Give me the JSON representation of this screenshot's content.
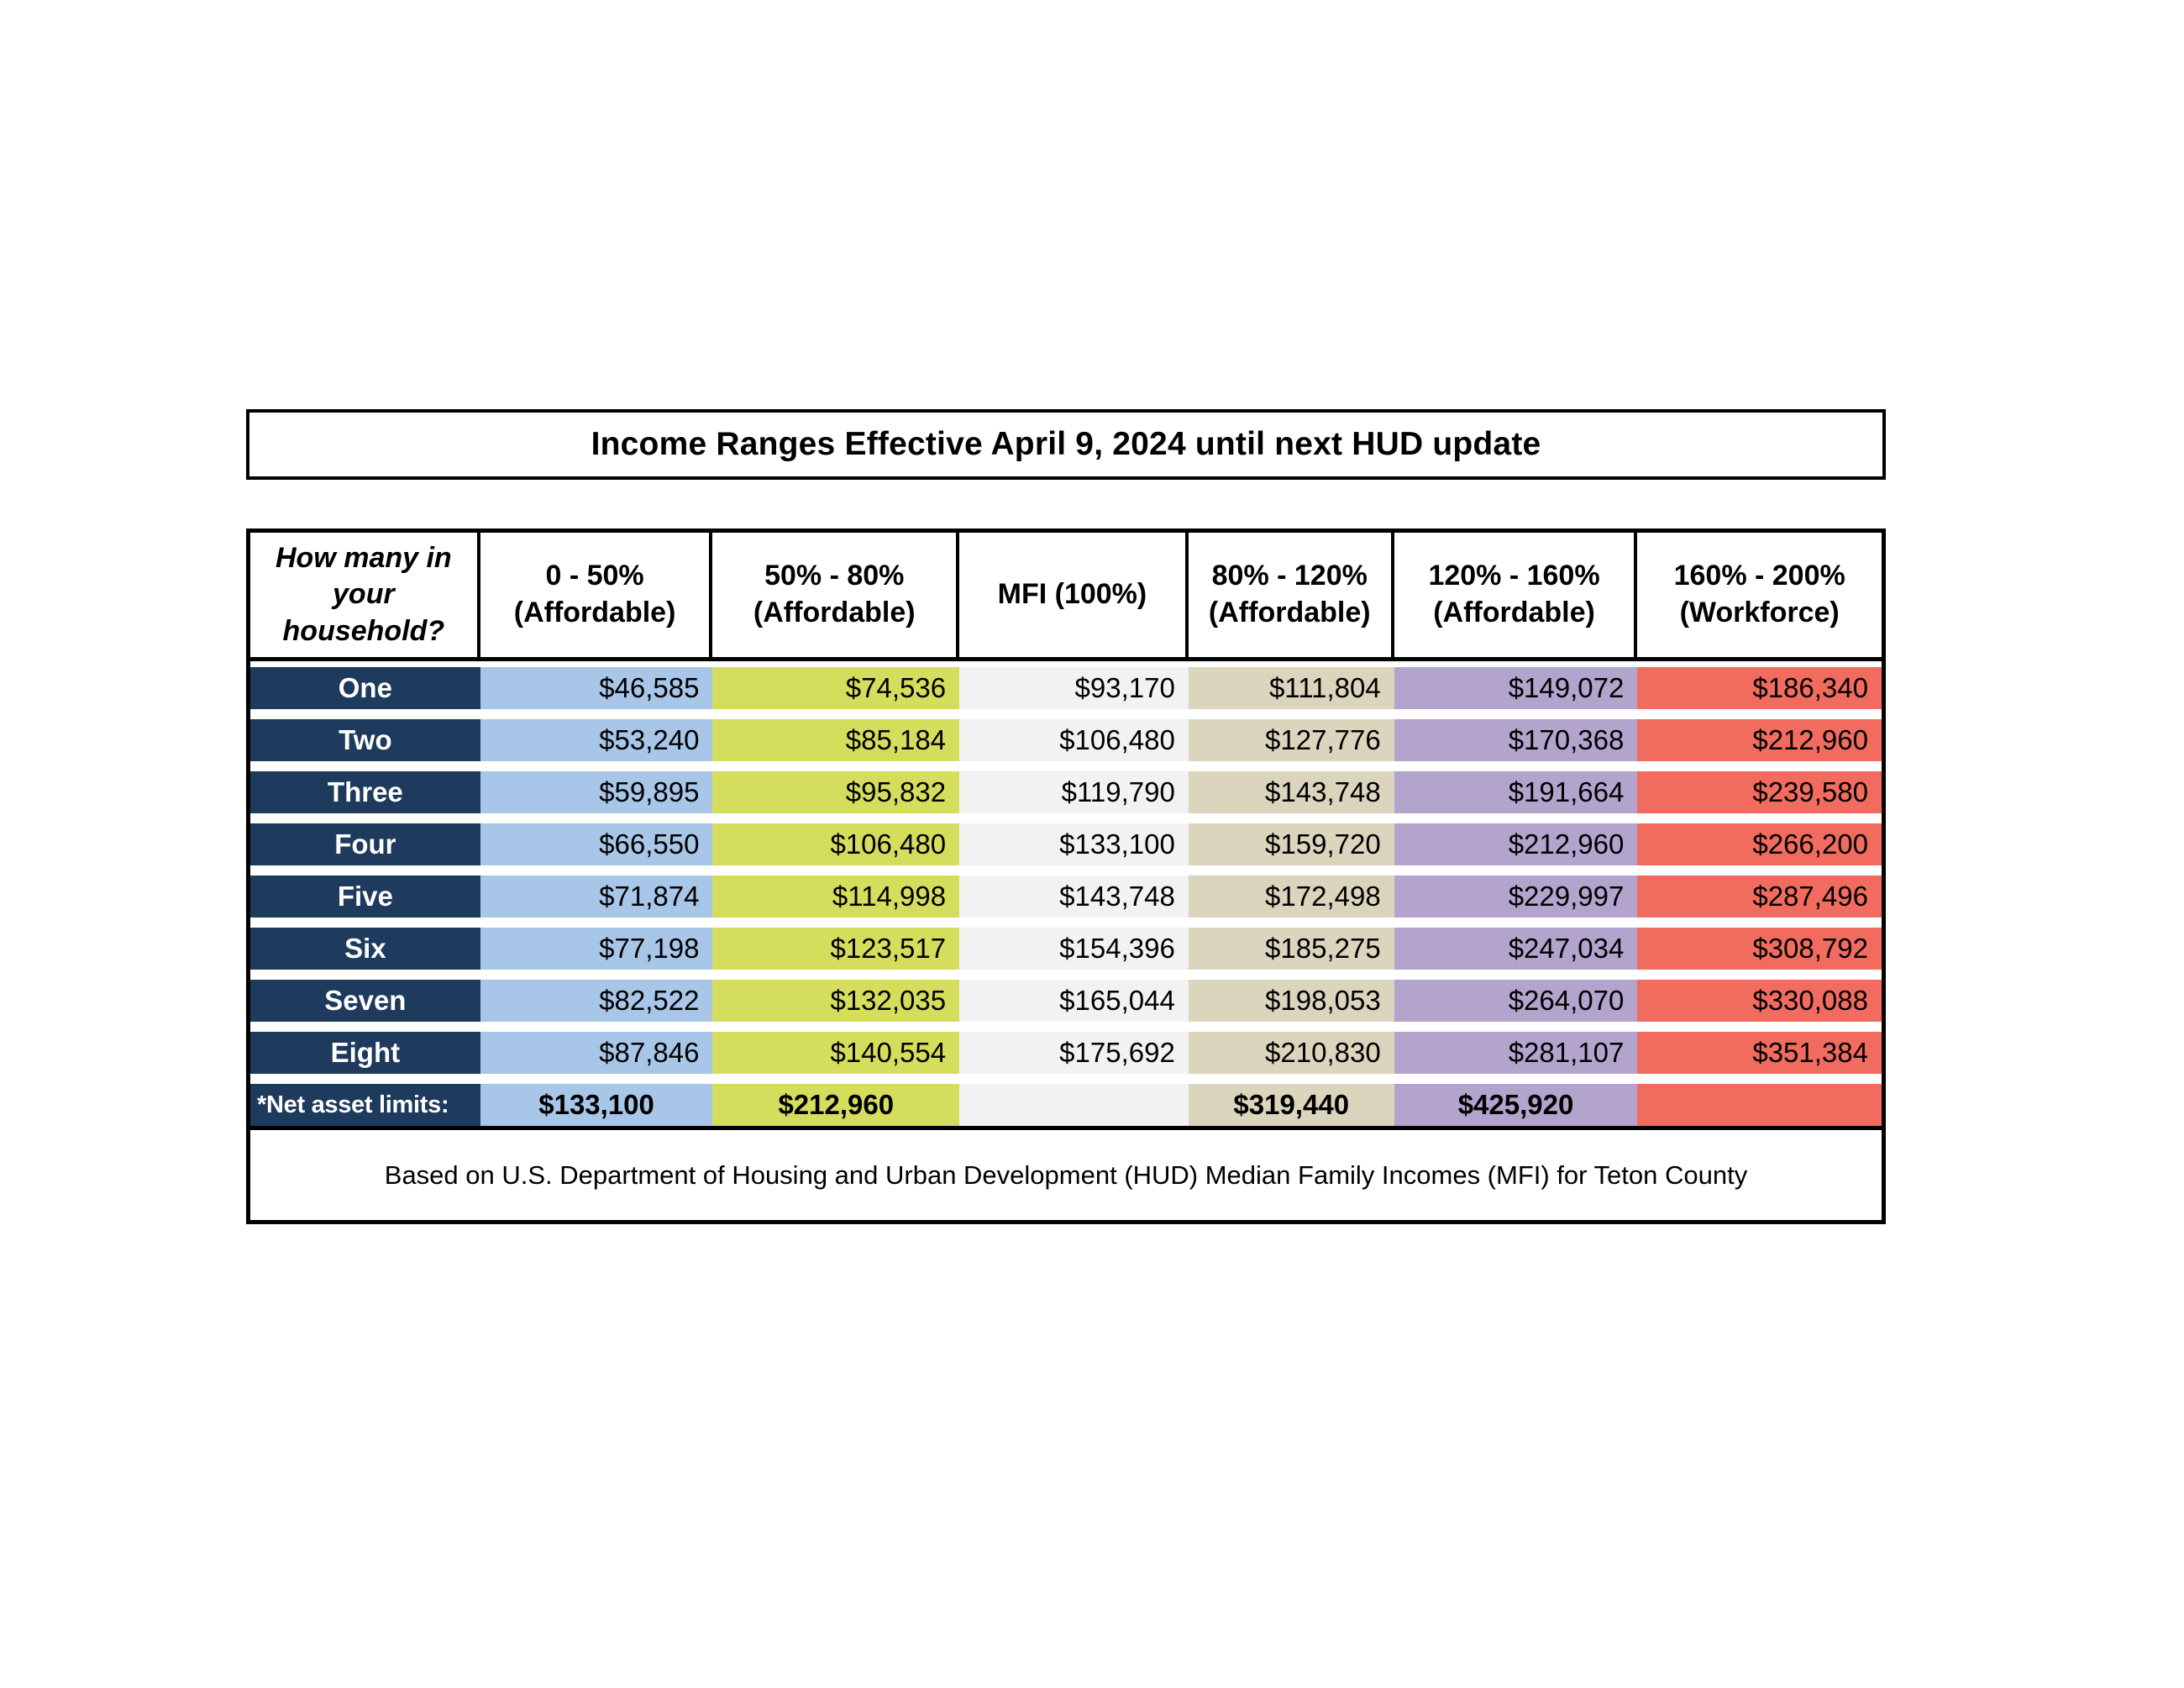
{
  "title": "Income Ranges Effective April 9, 2024 until next HUD update",
  "table": {
    "corner_header": "How many in your household?",
    "columns": [
      {
        "label": "0 - 50%",
        "sublabel": "(Affordable)"
      },
      {
        "label": "50% - 80%",
        "sublabel": "(Affordable)"
      },
      {
        "label": "MFI (100%)",
        "sublabel": ""
      },
      {
        "label": "80% - 120%",
        "sublabel": "(Affordable)"
      },
      {
        "label": "120% - 160%",
        "sublabel": "(Affordable)"
      },
      {
        "label": "160% - 200%",
        "sublabel": "(Workforce)"
      }
    ],
    "rows": [
      {
        "label": "One",
        "values": [
          "$46,585",
          "$74,536",
          "$93,170",
          "$111,804",
          "$149,072",
          "$186,340"
        ]
      },
      {
        "label": "Two",
        "values": [
          "$53,240",
          "$85,184",
          "$106,480",
          "$127,776",
          "$170,368",
          "$212,960"
        ]
      },
      {
        "label": "Three",
        "values": [
          "$59,895",
          "$95,832",
          "$119,790",
          "$143,748",
          "$191,664",
          "$239,580"
        ]
      },
      {
        "label": "Four",
        "values": [
          "$66,550",
          "$106,480",
          "$133,100",
          "$159,720",
          "$212,960",
          "$266,200"
        ]
      },
      {
        "label": "Five",
        "values": [
          "$71,874",
          "$114,998",
          "$143,748",
          "$172,498",
          "$229,997",
          "$287,496"
        ]
      },
      {
        "label": "Six",
        "values": [
          "$77,198",
          "$123,517",
          "$154,396",
          "$185,275",
          "$247,034",
          "$308,792"
        ]
      },
      {
        "label": "Seven",
        "values": [
          "$82,522",
          "$132,035",
          "$165,044",
          "$198,053",
          "$264,070",
          "$330,088"
        ]
      },
      {
        "label": "Eight",
        "values": [
          "$87,846",
          "$140,554",
          "$175,692",
          "$210,830",
          "$281,107",
          "$351,384"
        ]
      }
    ],
    "net_asset_limits": {
      "label": "*Net asset limits:",
      "values": [
        "$133,100",
        "$212,960",
        "",
        "$319,440",
        "$425,920",
        ""
      ]
    },
    "footnote": "Based on U.S. Department of Housing and Urban Development (HUD) Median Family Incomes (MFI) for Teton County"
  },
  "colors": {
    "navy": "#1e3a5c",
    "blue": "#a8c6e8",
    "chartreuse": "#d5dd5c",
    "gray": "#f2f2f2",
    "tan": "#dbd5bd",
    "purple": "#b2a4cd",
    "red": "#f16b5f"
  }
}
